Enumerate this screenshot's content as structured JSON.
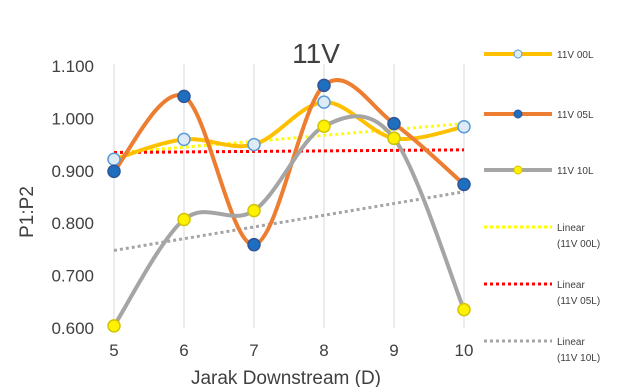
{
  "chart_data": {
    "type": "line",
    "title": "11V",
    "xlabel": "Jarak Downstream (D)",
    "ylabel": "P1:P2",
    "x": [
      5,
      6,
      7,
      8,
      9,
      10
    ],
    "x_tick_labels": [
      "5",
      "6",
      "7",
      "8",
      "9",
      "10"
    ],
    "y_tick_labels": [
      "0.600",
      "0.700",
      "0.800",
      "0.900",
      "1.000",
      "1.100"
    ],
    "xlim": [
      5,
      10
    ],
    "ylim": [
      0.6,
      1.1
    ],
    "grid": "vertical",
    "legend_position": "right",
    "series": [
      {
        "name": "11V 00L",
        "values": [
          0.922,
          0.96,
          0.95,
          1.031,
          0.962,
          0.984
        ],
        "line_color": "#FFC000",
        "marker_color": "#DDEBF7",
        "marker_edge": "#5B9BD5"
      },
      {
        "name": "11V 05L",
        "values": [
          0.899,
          1.042,
          0.759,
          1.063,
          0.99,
          0.874
        ],
        "line_color": "#ED7D31",
        "marker_color": "#1F6FC0",
        "marker_edge": "#2E5597"
      },
      {
        "name": "11V 10L",
        "values": [
          0.604,
          0.807,
          0.824,
          0.985,
          0.962,
          0.635
        ],
        "line_color": "#A5A5A5",
        "marker_color": "#FFF200",
        "marker_edge": "#D4C300"
      }
    ],
    "trendlines": [
      {
        "name": "Linear (11V 00L)",
        "label_lines": [
          "Linear",
          "(11V 00L)"
        ],
        "start": 0.934,
        "end": 0.99,
        "color": "#FFFF00"
      },
      {
        "name": "Linear (11V 05L)",
        "label_lines": [
          "Linear",
          "(11V 05L)"
        ],
        "start": 0.935,
        "end": 0.94,
        "color": "#FF0000"
      },
      {
        "name": "Linear (11V 10L)",
        "label_lines": [
          "Linear",
          "(11V 10L)"
        ],
        "start": 0.748,
        "end": 0.86,
        "color": "#A5A5A5"
      }
    ]
  }
}
